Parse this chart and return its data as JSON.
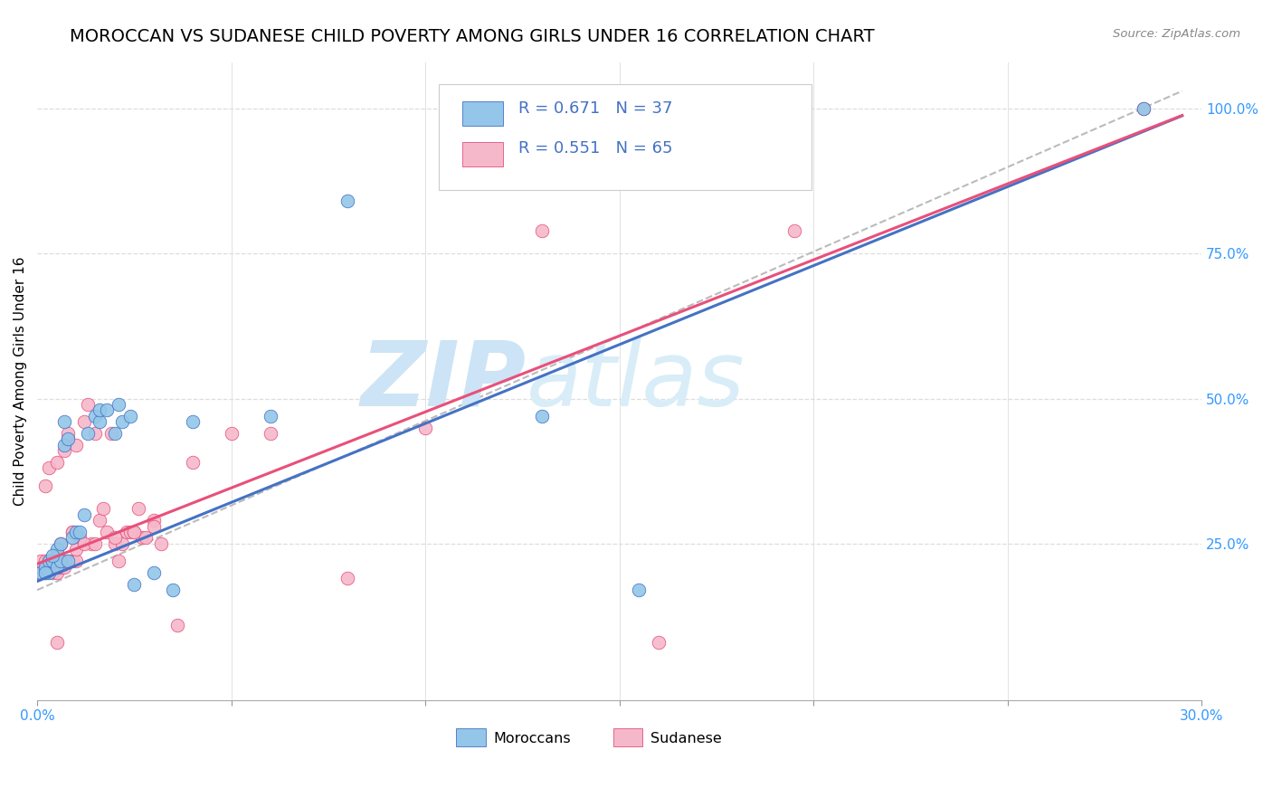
{
  "title": "MOROCCAN VS SUDANESE CHILD POVERTY AMONG GIRLS UNDER 16 CORRELATION CHART",
  "source": "Source: ZipAtlas.com",
  "ylabel": "Child Poverty Among Girls Under 16",
  "right_yticks": [
    0.0,
    0.25,
    0.5,
    0.75,
    1.0
  ],
  "right_yticklabels": [
    "",
    "25.0%",
    "50.0%",
    "75.0%",
    "100.0%"
  ],
  "xlim": [
    0.0,
    0.3
  ],
  "ylim": [
    -0.02,
    1.08
  ],
  "moroccan_R": 0.671,
  "moroccan_N": 37,
  "sudanese_R": 0.551,
  "sudanese_N": 65,
  "blue_scatter_color": "#93c6e8",
  "pink_scatter_color": "#f5b8cb",
  "blue_line_color": "#4472c4",
  "pink_line_color": "#e8507a",
  "dashed_line_color": "#bbbbbb",
  "watermark_zip_color": "#cce4f5",
  "watermark_atlas_color": "#d8edf7",
  "legend_label_moroccan": "Moroccans",
  "legend_label_sudanese": "Sudanese",
  "moroccan_scatter_x": [
    0.001,
    0.002,
    0.003,
    0.003,
    0.004,
    0.005,
    0.005,
    0.006,
    0.006,
    0.007,
    0.008,
    0.008,
    0.009,
    0.01,
    0.011,
    0.012,
    0.013,
    0.015,
    0.016,
    0.016,
    0.018,
    0.02,
    0.021,
    0.022,
    0.024,
    0.025,
    0.03,
    0.035,
    0.04,
    0.06,
    0.08,
    0.13,
    0.155,
    0.285,
    0.002,
    0.004,
    0.007
  ],
  "moroccan_scatter_y": [
    0.2,
    0.21,
    0.2,
    0.22,
    0.22,
    0.21,
    0.24,
    0.22,
    0.25,
    0.42,
    0.43,
    0.22,
    0.26,
    0.27,
    0.27,
    0.3,
    0.44,
    0.47,
    0.46,
    0.48,
    0.48,
    0.44,
    0.49,
    0.46,
    0.47,
    0.18,
    0.2,
    0.17,
    0.46,
    0.47,
    0.84,
    0.47,
    0.17,
    1.0,
    0.2,
    0.23,
    0.46
  ],
  "sudanese_scatter_x": [
    0.0,
    0.001,
    0.001,
    0.002,
    0.002,
    0.003,
    0.003,
    0.004,
    0.004,
    0.005,
    0.005,
    0.005,
    0.006,
    0.006,
    0.007,
    0.007,
    0.008,
    0.008,
    0.009,
    0.009,
    0.01,
    0.01,
    0.011,
    0.012,
    0.013,
    0.014,
    0.015,
    0.016,
    0.017,
    0.018,
    0.019,
    0.02,
    0.021,
    0.022,
    0.023,
    0.024,
    0.025,
    0.026,
    0.027,
    0.028,
    0.03,
    0.032,
    0.036,
    0.04,
    0.05,
    0.06,
    0.08,
    0.1,
    0.13,
    0.16,
    0.195,
    0.285,
    0.002,
    0.003,
    0.005,
    0.007,
    0.008,
    0.009,
    0.01,
    0.012,
    0.015,
    0.02,
    0.025,
    0.03,
    0.005
  ],
  "sudanese_scatter_y": [
    0.2,
    0.21,
    0.22,
    0.2,
    0.35,
    0.21,
    0.38,
    0.2,
    0.22,
    0.2,
    0.23,
    0.39,
    0.21,
    0.25,
    0.21,
    0.41,
    0.22,
    0.43,
    0.22,
    0.27,
    0.22,
    0.42,
    0.26,
    0.46,
    0.49,
    0.25,
    0.44,
    0.29,
    0.31,
    0.27,
    0.44,
    0.25,
    0.22,
    0.25,
    0.27,
    0.27,
    0.27,
    0.31,
    0.26,
    0.26,
    0.29,
    0.25,
    0.11,
    0.39,
    0.44,
    0.44,
    0.19,
    0.45,
    0.79,
    0.08,
    0.79,
    1.0,
    0.22,
    0.22,
    0.22,
    0.22,
    0.44,
    0.27,
    0.24,
    0.25,
    0.25,
    0.26,
    0.27,
    0.28,
    0.08
  ],
  "grid_color": "#dddddd",
  "background_color": "#ffffff",
  "title_fontsize": 14,
  "axis_label_fontsize": 11,
  "tick_fontsize": 11,
  "legend_blue_color": "#4472c4",
  "legend_pink_color": "#e8507a",
  "legend_text_color": "#4472c4",
  "blue_line_intercept": 0.185,
  "blue_line_slope": 2.72,
  "pink_line_intercept": 0.215,
  "pink_line_slope": 2.62,
  "dash_line_y0": 0.17,
  "dash_line_y1": 1.03
}
